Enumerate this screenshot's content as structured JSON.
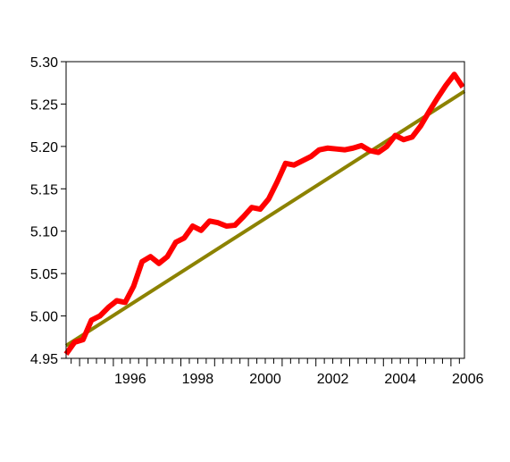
{
  "chart_data": {
    "type": "line",
    "title": "",
    "xlabel": "",
    "ylabel": "",
    "xlim": [
      1994.6,
      2006.4
    ],
    "ylim": [
      4.95,
      5.3
    ],
    "y_ticks": [
      "4.95",
      "5.00",
      "5.05",
      "5.10",
      "5.15",
      "5.20",
      "5.25",
      "5.30"
    ],
    "x_ticks": [
      "1996",
      "1998",
      "2000",
      "2002",
      "2004",
      "2006"
    ],
    "grid": false,
    "legend": "none",
    "series": [
      {
        "color": "#ff0000",
        "x": [
          1994.6,
          1994.85,
          1995.1,
          1995.35,
          1995.6,
          1995.85,
          1996.1,
          1996.35,
          1996.6,
          1996.85,
          1997.1,
          1997.35,
          1997.6,
          1997.85,
          1998.1,
          1998.35,
          1998.6,
          1998.85,
          1999.1,
          1999.35,
          1999.6,
          1999.85,
          2000.1,
          2000.35,
          2000.6,
          2000.85,
          2001.1,
          2001.35,
          2001.6,
          2001.85,
          2002.1,
          2002.35,
          2002.6,
          2002.85,
          2003.1,
          2003.35,
          2003.6,
          2003.85,
          2004.1,
          2004.35,
          2004.6,
          2004.85,
          2005.1,
          2005.35,
          2005.6,
          2005.85,
          2006.1,
          2006.35
        ],
        "y": [
          4.955,
          4.969,
          4.972,
          4.995,
          5.0,
          5.01,
          5.018,
          5.016,
          5.035,
          5.064,
          5.07,
          5.062,
          5.07,
          5.087,
          5.092,
          5.106,
          5.101,
          5.112,
          5.11,
          5.106,
          5.107,
          5.117,
          5.128,
          5.126,
          5.138,
          5.158,
          5.18,
          5.178,
          5.183,
          5.188,
          5.196,
          5.198,
          5.197,
          5.196,
          5.198,
          5.201,
          5.195,
          5.193,
          5.2,
          5.213,
          5.208,
          5.211,
          5.224,
          5.241,
          5.257,
          5.272,
          5.285,
          5.27
        ]
      },
      {
        "color": "#8c8200",
        "x": [
          1994.6,
          2006.4
        ],
        "y": [
          4.965,
          5.265
        ]
      }
    ]
  }
}
